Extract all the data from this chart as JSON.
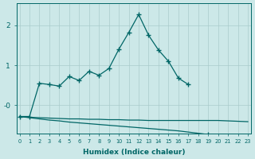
{
  "xlabel": "Humidex (Indice chaleur)",
  "bg_color": "#cce8e8",
  "line_color": "#006666",
  "grid_color": "#aacccc",
  "ylim": [
    -0.7,
    2.55
  ],
  "xlim": [
    -0.3,
    23.3
  ],
  "line1_x": [
    0,
    1,
    2,
    3,
    4,
    5,
    6,
    7,
    8,
    9,
    10,
    11,
    12,
    13,
    14,
    15,
    16,
    17
  ],
  "line1_y": [
    -0.28,
    -0.28,
    0.55,
    0.52,
    0.48,
    0.72,
    0.62,
    0.85,
    0.75,
    0.92,
    1.4,
    1.82,
    2.27,
    1.75,
    1.38,
    1.1,
    0.68,
    0.52
  ],
  "line2_x": [
    0,
    1,
    2,
    3,
    4,
    5,
    6,
    7,
    8,
    9,
    10,
    11,
    12,
    13,
    14,
    15,
    16,
    17,
    18,
    19,
    20,
    21,
    22,
    23
  ],
  "line2_y": [
    -0.28,
    -0.3,
    -0.31,
    -0.32,
    -0.33,
    -0.34,
    -0.34,
    -0.35,
    -0.35,
    -0.36,
    -0.36,
    -0.37,
    -0.37,
    -0.38,
    -0.38,
    -0.38,
    -0.38,
    -0.38,
    -0.38,
    -0.38,
    -0.38,
    -0.39,
    -0.4,
    -0.41
  ],
  "line3_x": [
    0,
    1,
    2,
    3,
    4,
    5,
    6,
    7,
    8,
    9,
    10,
    11,
    12,
    13,
    14,
    15,
    16,
    17,
    18,
    19,
    20,
    21,
    22,
    23
  ],
  "line3_y": [
    -0.28,
    -0.31,
    -0.34,
    -0.37,
    -0.39,
    -0.42,
    -0.44,
    -0.46,
    -0.48,
    -0.5,
    -0.52,
    -0.54,
    -0.56,
    -0.58,
    -0.6,
    -0.62,
    -0.64,
    -0.67,
    -0.7,
    -0.73,
    -0.76,
    -0.8,
    -0.84,
    -0.88
  ],
  "line3_marker_x": [
    19,
    20,
    21,
    22,
    23
  ],
  "yticks": [
    0.0,
    1.0,
    2.0
  ],
  "ytick_labels": [
    "-0",
    "1",
    "2"
  ]
}
